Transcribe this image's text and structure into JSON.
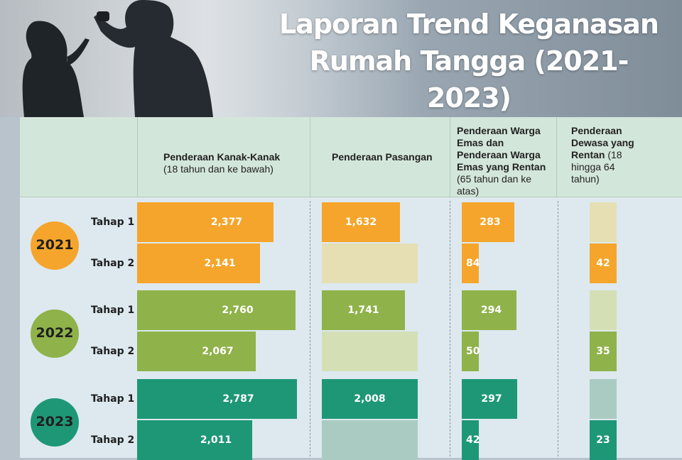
{
  "header": {
    "title_line1": "Laporan Trend Keganasan",
    "title_line2": "Rumah Tangga (2021-2023)"
  },
  "table_header": {
    "col1": {
      "title": "Penderaan Kanak-Kanak",
      "subtitle": "(18 tahun dan ke bawah)"
    },
    "col2": {
      "title": "Penderaan Pasangan",
      "subtitle": ""
    },
    "col3": {
      "title": "Penderaan Warga Emas dan Penderaan Warga Emas yang Rentan",
      "subtitle": "(65 tahun dan ke atas)"
    },
    "col4": {
      "title": "Penderaan Dewasa yang Rentan",
      "subtitle": "(18 hingga 64 tahun)"
    }
  },
  "colors": {
    "2021": {
      "full": "#f5a52b",
      "light": "#e5dfb3"
    },
    "2022": {
      "full": "#8fb24a",
      "light": "#d4dfb6"
    },
    "2023": {
      "full": "#1e9777",
      "light": "#aacbc2"
    }
  },
  "chart_data": {
    "type": "bar",
    "title": "Laporan Trend Keganasan Rumah Tangga (2021-2023)",
    "categories": [
      "Penderaan Kanak-Kanak",
      "Penderaan Pasangan",
      "Penderaan Warga Emas dan Penderaan Warga Emas yang Rentan",
      "Penderaan Dewasa yang Rentan"
    ],
    "groups": [
      {
        "year": "2021",
        "rows": [
          {
            "stage": "Tahap 1",
            "values": [
              "2,377",
              "1,632",
              "283",
              null
            ]
          },
          {
            "stage": "Tahap 2",
            "values": [
              "2,141",
              null,
              "84",
              "42"
            ]
          }
        ]
      },
      {
        "year": "2022",
        "rows": [
          {
            "stage": "Tahap 1",
            "values": [
              "2,760",
              "1,741",
              "294",
              null
            ]
          },
          {
            "stage": "Tahap 2",
            "values": [
              "2,067",
              null,
              "50",
              "35"
            ]
          }
        ]
      },
      {
        "year": "2023",
        "rows": [
          {
            "stage": "Tahap 1",
            "values": [
              "2,787",
              "2,008",
              "297",
              null
            ]
          },
          {
            "stage": "Tahap 2",
            "values": [
              "2,011",
              null,
              "42",
              "23"
            ]
          }
        ]
      }
    ]
  }
}
